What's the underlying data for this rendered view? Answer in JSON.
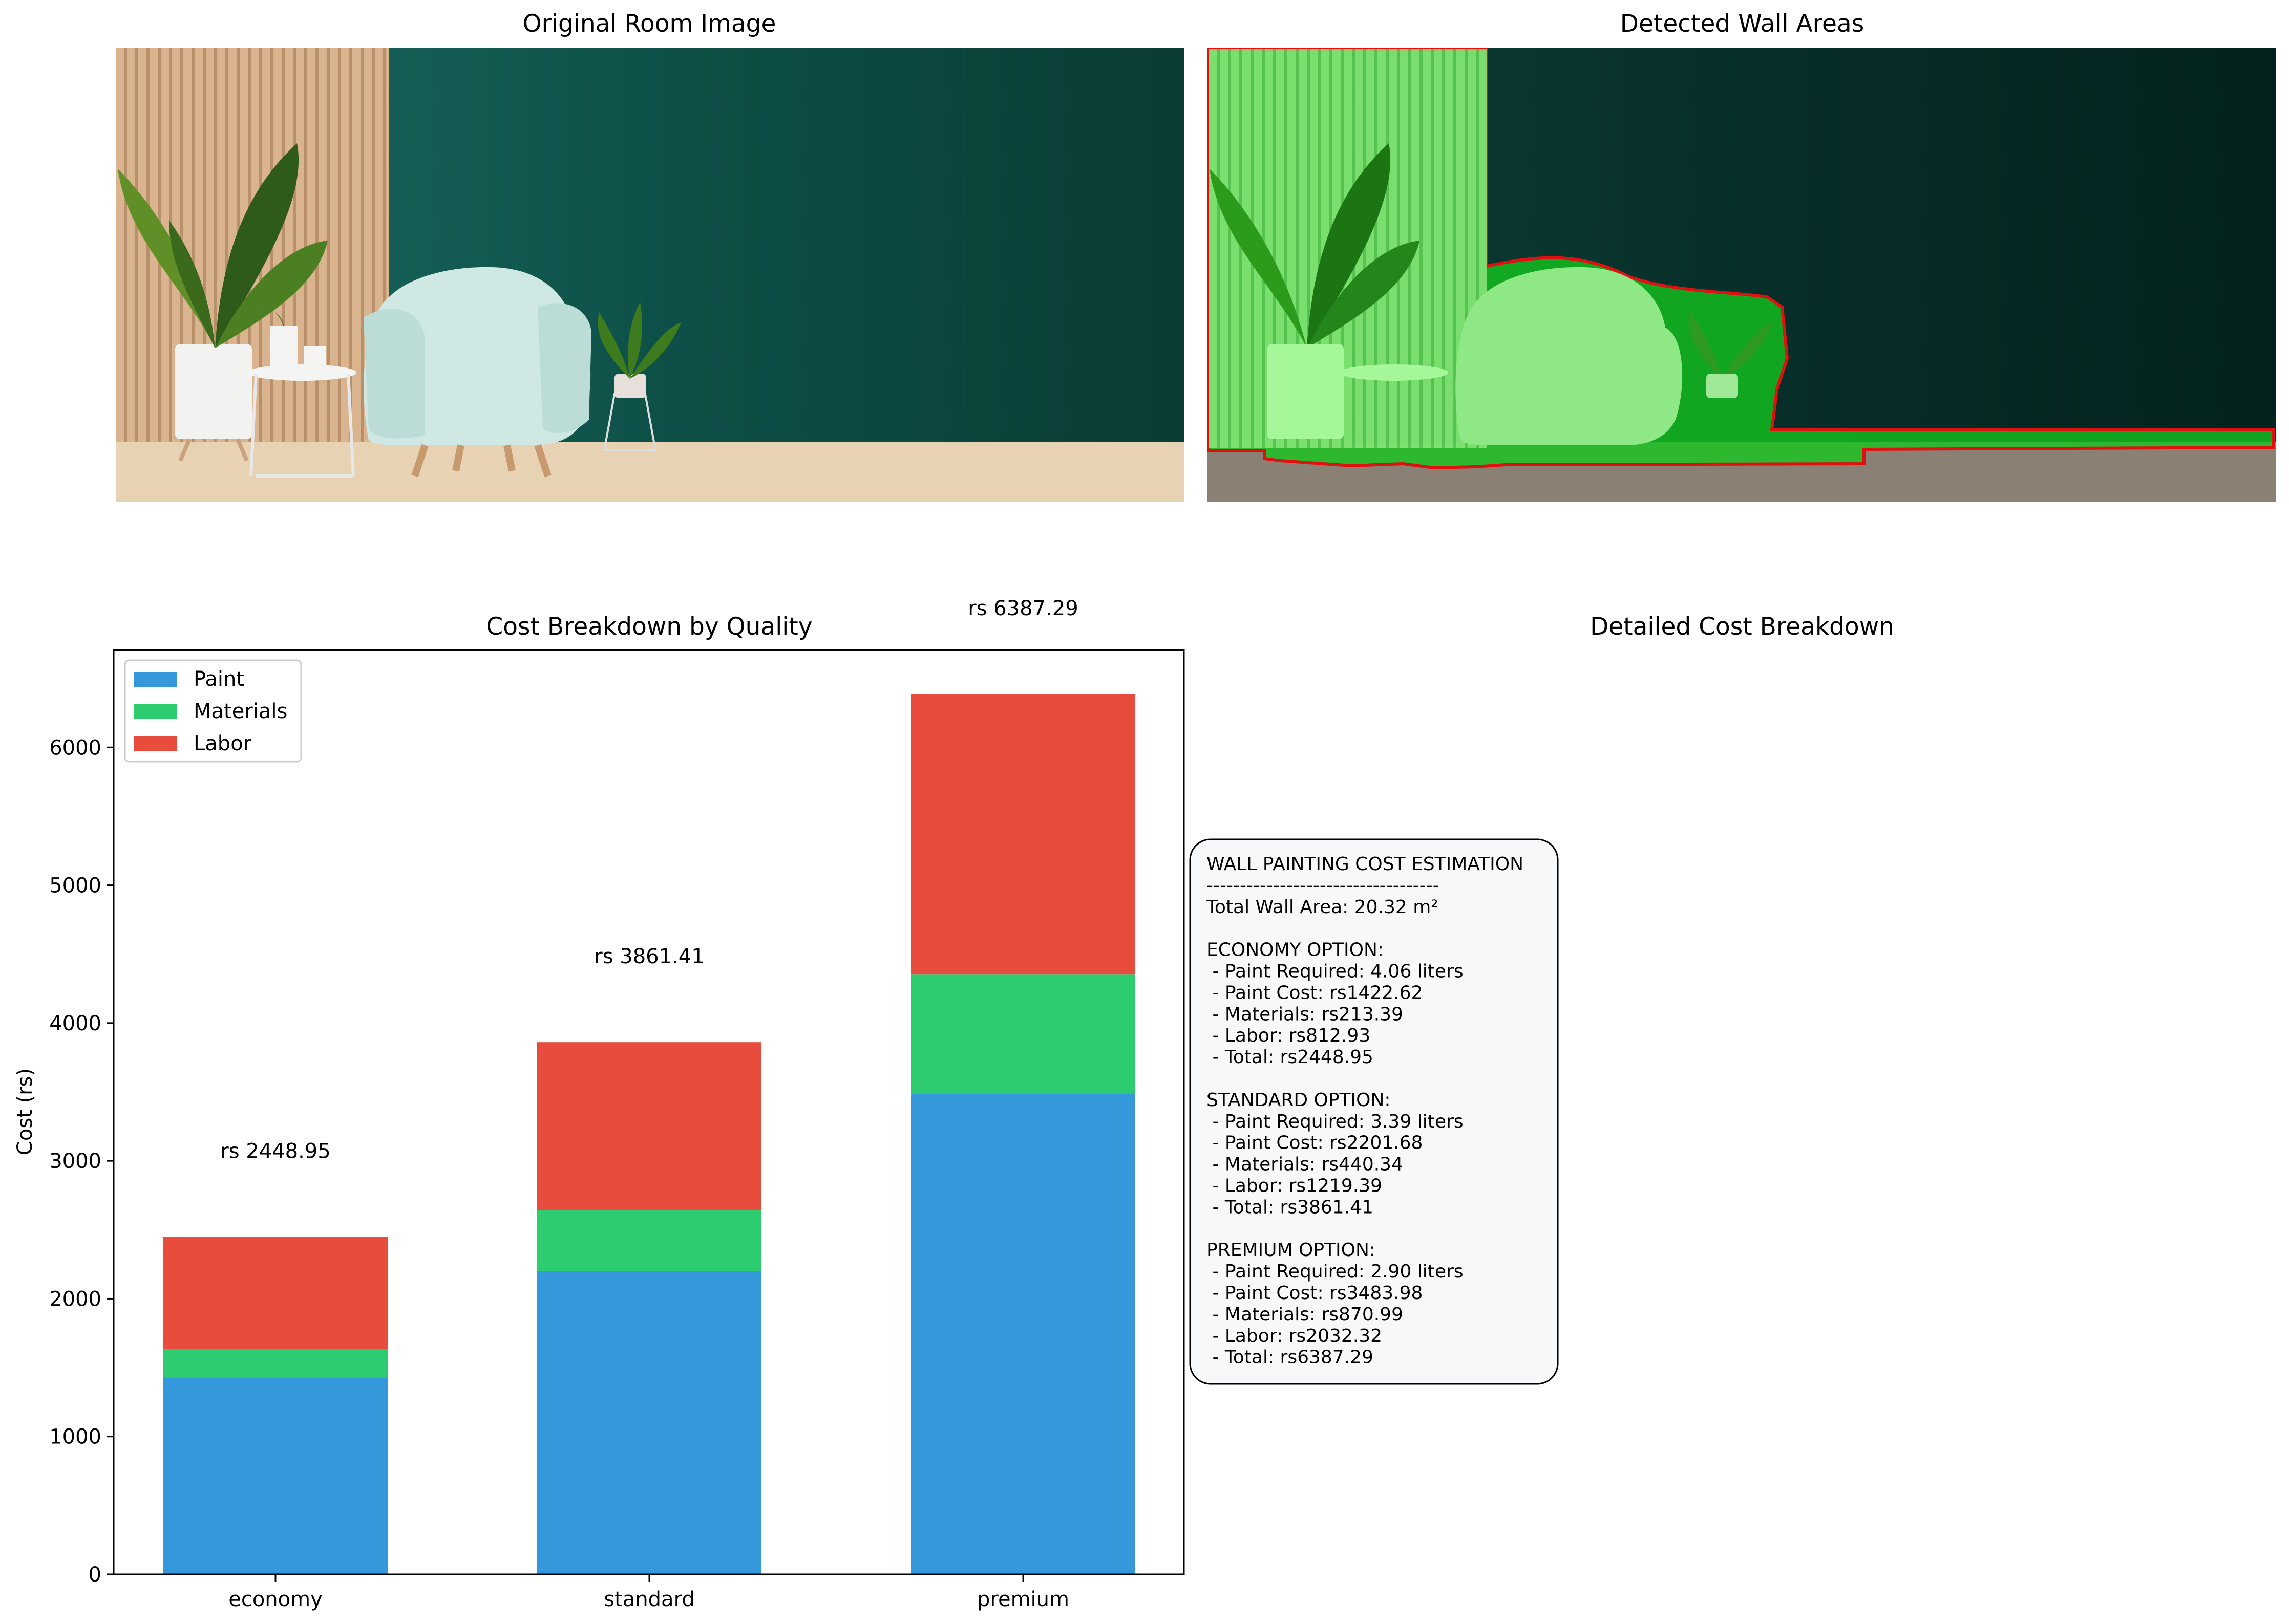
{
  "panels": {
    "original_title": "Original Room Image",
    "detected_title": "Detected Wall Areas",
    "details_title": "Detailed Cost Breakdown"
  },
  "colors": {
    "paint": "#3498db",
    "materials": "#2ecc71",
    "labor": "#e74c3c",
    "wall_overlay": "#00c800",
    "outline": "#e01010",
    "text_box_bg": "#f7f8fa"
  },
  "chart_data": {
    "type": "bar",
    "stacked": true,
    "title": "Cost Breakdown by Quality",
    "xlabel": "",
    "ylabel": "Cost (rs)",
    "categories": [
      "economy",
      "standard",
      "premium"
    ],
    "ylim": [
      0,
      6706.65
    ],
    "yticks": [
      0,
      1000,
      2000,
      3000,
      4000,
      5000,
      6000
    ],
    "legend_position": "upper-left",
    "grid": false,
    "series": [
      {
        "name": "Paint",
        "color": "#3498db",
        "values": [
          1422.62,
          2201.68,
          3483.98
        ]
      },
      {
        "name": "Materials",
        "color": "#2ecc71",
        "values": [
          213.39,
          440.34,
          870.99
        ]
      },
      {
        "name": "Labor",
        "color": "#e74c3c",
        "values": [
          812.93,
          1219.39,
          2032.32
        ]
      }
    ],
    "totals": [
      2448.95,
      3861.41,
      6387.29
    ],
    "total_labels": [
      "rs 2448.95",
      "rs 3861.41",
      "rs 6387.29"
    ]
  },
  "report": {
    "lines": [
      "WALL PAINTING COST ESTIMATION",
      "-----------------------------------",
      "Total Wall Area: 20.32 m²",
      "",
      "ECONOMY OPTION:",
      " - Paint Required: 4.06 liters",
      " - Paint Cost: rs1422.62",
      " - Materials: rs213.39",
      " - Labor: rs812.93",
      " - Total: rs2448.95",
      "",
      "STANDARD OPTION:",
      " - Paint Required: 3.39 liters",
      " - Paint Cost: rs2201.68",
      " - Materials: rs440.34",
      " - Labor: rs1219.39",
      " - Total: rs3861.41",
      "",
      "PREMIUM OPTION:",
      " - Paint Required: 2.90 liters",
      " - Paint Cost: rs3483.98",
      " - Materials: rs870.99",
      " - Labor: rs2032.32",
      " - Total: rs6387.29"
    ]
  }
}
